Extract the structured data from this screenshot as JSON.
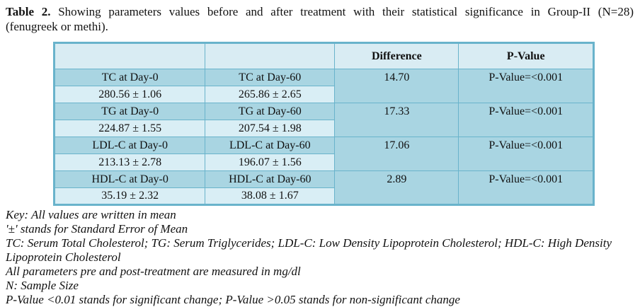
{
  "colors": {
    "border_color": "#69b3cb",
    "header_bg": "#d9ecf3",
    "group_bg": "#a9d5e2",
    "value_bg": "#d9eef5"
  },
  "caption": {
    "label": "Table 2.",
    "line1": "Showing parameters values before and after treatment with their statistical significance in Group-II (N=28)",
    "line2": "(fenugreek or methi)."
  },
  "table": {
    "headers": [
      "",
      "",
      "Difference",
      "P-Value"
    ],
    "groups": [
      {
        "day0": "TC at Day-0",
        "day60": "TC at Day-60",
        "value0": "280.56 ± 1.06",
        "value60": "265.86 ± 2.65",
        "difference": "14.70",
        "p_value": "P-Value=<0.001"
      },
      {
        "day0": "TG at Day-0",
        "day60": "TG at Day-60",
        "value0": "224.87 ± 1.55",
        "value60": "207.54 ± 1.98",
        "difference": "17.33",
        "p_value": "P-Value=<0.001"
      },
      {
        "day0": "LDL-C at Day-0",
        "day60": "LDL-C at Day-60",
        "value0": "213.13 ± 2.78",
        "value60": "196.07 ± 1.56",
        "difference": "17.06",
        "p_value": "P-Value=<0.001"
      },
      {
        "day0": "HDL-C at Day-0",
        "day60": "HDL-C at Day-60",
        "value0": "35.19 ± 2.32",
        "value60": "38.08 ± 1.67",
        "difference": "2.89",
        "p_value": "P-Value=<0.001"
      }
    ]
  },
  "notes": {
    "lines": [
      "Key: All values are written in mean",
      "'±' stands for Standard Error of Mean",
      "TC: Serum Total Cholesterol; TG: Serum Triglycerides; LDL-C: Low Density Lipoprotein Cholesterol; HDL-C: High Density Lipoprotein Cholesterol",
      "All parameters pre and post-treatment are measured in mg/dl",
      "N: Sample Size",
      "P-Value <0.01 stands for significant change; P-Value >0.05 stands for non-significant change"
    ]
  }
}
